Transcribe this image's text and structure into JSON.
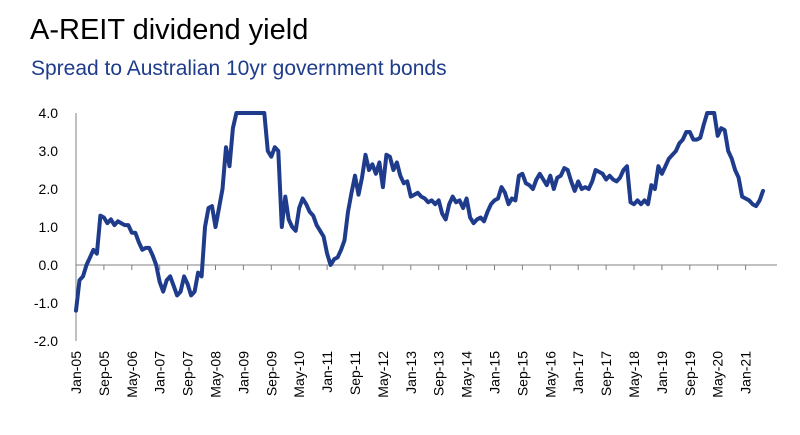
{
  "chart_data": {
    "type": "line",
    "title": "A-REIT dividend yield",
    "subtitle": "Spread to Australian 10yr government bonds",
    "xlabel": "",
    "ylabel": "",
    "ylim": [
      -2.0,
      4.0
    ],
    "yticks": [
      "4.0",
      "3.0",
      "2.0",
      "1.0",
      "0.0",
      "-1.0",
      "-2.0"
    ],
    "grid": false,
    "x_start": "Jan-05",
    "x_end": "Oct-21",
    "xticks": [
      "Jan-05",
      "Sep-05",
      "May-06",
      "Jan-07",
      "Sep-07",
      "May-08",
      "Jan-09",
      "Sep-09",
      "May-10",
      "Jan-11",
      "Sep-11",
      "May-12",
      "Jan-13",
      "Sep-13",
      "May-14",
      "Jan-15",
      "Sep-15",
      "May-16",
      "Jan-17",
      "Sep-17",
      "May-18",
      "Jan-19",
      "Sep-19",
      "May-20",
      "Jan-21"
    ],
    "series": [
      {
        "color": "#1f3c8c",
        "points": [
          [
            "Jan-05",
            -1.2
          ],
          [
            "Feb-05",
            -0.4
          ],
          [
            "Mar-05",
            -0.3
          ],
          [
            "Apr-05",
            0.0
          ],
          [
            "May-05",
            0.2
          ],
          [
            "Jun-05",
            0.4
          ],
          [
            "Jul-05",
            0.3
          ],
          [
            "Aug-05",
            1.3
          ],
          [
            "Sep-05",
            1.25
          ],
          [
            "Oct-05",
            1.1
          ],
          [
            "Nov-05",
            1.2
          ],
          [
            "Dec-05",
            1.05
          ],
          [
            "Jan-06",
            1.15
          ],
          [
            "Feb-06",
            1.1
          ],
          [
            "Mar-06",
            1.05
          ],
          [
            "Apr-06",
            1.05
          ],
          [
            "May-06",
            0.85
          ],
          [
            "Jun-06",
            0.85
          ],
          [
            "Jul-06",
            0.6
          ],
          [
            "Aug-06",
            0.4
          ],
          [
            "Sep-06",
            0.45
          ],
          [
            "Oct-06",
            0.45
          ],
          [
            "Nov-06",
            0.25
          ],
          [
            "Dec-06",
            0.0
          ],
          [
            "Jan-07",
            -0.45
          ],
          [
            "Feb-07",
            -0.7
          ],
          [
            "Mar-07",
            -0.4
          ],
          [
            "Apr-07",
            -0.3
          ],
          [
            "May-07",
            -0.55
          ],
          [
            "Jun-07",
            -0.8
          ],
          [
            "Jul-07",
            -0.7
          ],
          [
            "Aug-07",
            -0.3
          ],
          [
            "Sep-07",
            -0.5
          ],
          [
            "Oct-07",
            -0.8
          ],
          [
            "Nov-07",
            -0.7
          ],
          [
            "Dec-07",
            -0.2
          ],
          [
            "Jan-08",
            -0.3
          ],
          [
            "Feb-08",
            1.0
          ],
          [
            "Mar-08",
            1.5
          ],
          [
            "Apr-08",
            1.55
          ],
          [
            "May-08",
            1.0
          ],
          [
            "Jun-08",
            1.5
          ],
          [
            "Jul-08",
            2.0
          ],
          [
            "Aug-08",
            3.1
          ],
          [
            "Sep-08",
            2.6
          ],
          [
            "Oct-08",
            3.6
          ],
          [
            "Nov-08",
            4.0
          ],
          [
            "Jul-09",
            4.0
          ],
          [
            "Aug-09",
            3.0
          ],
          [
            "Sep-09",
            2.85
          ],
          [
            "Oct-09",
            3.1
          ],
          [
            "Nov-09",
            3.0
          ],
          [
            "Dec-09",
            1.0
          ],
          [
            "Jan-10",
            1.8
          ],
          [
            "Feb-10",
            1.2
          ],
          [
            "Mar-10",
            1.0
          ],
          [
            "Apr-10",
            0.9
          ],
          [
            "May-10",
            1.5
          ],
          [
            "Jun-10",
            1.75
          ],
          [
            "Jul-10",
            1.6
          ],
          [
            "Aug-10",
            1.4
          ],
          [
            "Sep-10",
            1.3
          ],
          [
            "Oct-10",
            1.05
          ],
          [
            "Nov-10",
            0.9
          ],
          [
            "Dec-10",
            0.75
          ],
          [
            "Jan-11",
            0.3
          ],
          [
            "Feb-11",
            0.0
          ],
          [
            "Mar-11",
            0.15
          ],
          [
            "Apr-11",
            0.2
          ],
          [
            "May-11",
            0.4
          ],
          [
            "Jun-11",
            0.65
          ],
          [
            "Jul-11",
            1.4
          ],
          [
            "Aug-11",
            1.9
          ],
          [
            "Sep-11",
            2.35
          ],
          [
            "Oct-11",
            1.85
          ],
          [
            "Nov-11",
            2.3
          ],
          [
            "Dec-11",
            2.9
          ],
          [
            "Jan-12",
            2.5
          ],
          [
            "Feb-12",
            2.65
          ],
          [
            "Mar-12",
            2.4
          ],
          [
            "Apr-12",
            2.7
          ],
          [
            "May-12",
            2.05
          ],
          [
            "Jun-12",
            2.9
          ],
          [
            "Jul-12",
            2.85
          ],
          [
            "Aug-12",
            2.5
          ],
          [
            "Sep-12",
            2.7
          ],
          [
            "Oct-12",
            2.35
          ],
          [
            "Nov-12",
            2.15
          ],
          [
            "Dec-12",
            2.2
          ],
          [
            "Jan-13",
            1.8
          ],
          [
            "Feb-13",
            1.85
          ],
          [
            "Mar-13",
            1.9
          ],
          [
            "Apr-13",
            1.8
          ],
          [
            "May-13",
            1.75
          ],
          [
            "Jun-13",
            1.65
          ],
          [
            "Jul-13",
            1.7
          ],
          [
            "Aug-13",
            1.6
          ],
          [
            "Sep-13",
            1.7
          ],
          [
            "Oct-13",
            1.35
          ],
          [
            "Nov-13",
            1.2
          ],
          [
            "Dec-13",
            1.6
          ],
          [
            "Jan-14",
            1.8
          ],
          [
            "Feb-14",
            1.65
          ],
          [
            "Mar-14",
            1.7
          ],
          [
            "Apr-14",
            1.5
          ],
          [
            "May-14",
            1.75
          ],
          [
            "Jun-14",
            1.25
          ],
          [
            "Jul-14",
            1.1
          ],
          [
            "Aug-14",
            1.2
          ],
          [
            "Sep-14",
            1.25
          ],
          [
            "Oct-14",
            1.15
          ],
          [
            "Nov-14",
            1.4
          ],
          [
            "Dec-14",
            1.6
          ],
          [
            "Jan-15",
            1.7
          ],
          [
            "Feb-15",
            1.75
          ],
          [
            "Mar-15",
            2.05
          ],
          [
            "Apr-15",
            1.9
          ],
          [
            "May-15",
            1.6
          ],
          [
            "Jun-15",
            1.75
          ],
          [
            "Jul-15",
            1.7
          ],
          [
            "Aug-15",
            2.35
          ],
          [
            "Sep-15",
            2.4
          ],
          [
            "Oct-15",
            2.15
          ],
          [
            "Nov-15",
            2.1
          ],
          [
            "Dec-15",
            2.0
          ],
          [
            "Jan-16",
            2.25
          ],
          [
            "Feb-16",
            2.4
          ],
          [
            "Mar-16",
            2.25
          ],
          [
            "Apr-16",
            2.1
          ],
          [
            "May-16",
            2.35
          ],
          [
            "Jun-16",
            2.0
          ],
          [
            "Jul-16",
            2.3
          ],
          [
            "Aug-16",
            2.35
          ],
          [
            "Sep-16",
            2.55
          ],
          [
            "Oct-16",
            2.5
          ],
          [
            "Nov-16",
            2.2
          ],
          [
            "Dec-16",
            1.95
          ],
          [
            "Jan-17",
            2.2
          ],
          [
            "Feb-17",
            2.0
          ],
          [
            "Mar-17",
            2.05
          ],
          [
            "Apr-17",
            2.0
          ],
          [
            "May-17",
            2.2
          ],
          [
            "Jun-17",
            2.5
          ],
          [
            "Jul-17",
            2.45
          ],
          [
            "Aug-17",
            2.4
          ],
          [
            "Sep-17",
            2.25
          ],
          [
            "Oct-17",
            2.35
          ],
          [
            "Nov-17",
            2.25
          ],
          [
            "Dec-17",
            2.2
          ],
          [
            "Jan-18",
            2.3
          ],
          [
            "Feb-18",
            2.5
          ],
          [
            "Mar-18",
            2.6
          ],
          [
            "Apr-18",
            1.65
          ],
          [
            "May-18",
            1.6
          ],
          [
            "Jun-18",
            1.7
          ],
          [
            "Jul-18",
            1.6
          ],
          [
            "Aug-18",
            1.7
          ],
          [
            "Sep-18",
            1.6
          ],
          [
            "Oct-18",
            2.1
          ],
          [
            "Nov-18",
            2.0
          ],
          [
            "Dec-18",
            2.6
          ],
          [
            "Jan-19",
            2.4
          ],
          [
            "Feb-19",
            2.6
          ],
          [
            "Mar-19",
            2.8
          ],
          [
            "Apr-19",
            2.9
          ],
          [
            "May-19",
            3.0
          ],
          [
            "Jun-19",
            3.2
          ],
          [
            "Jul-19",
            3.3
          ],
          [
            "Aug-19",
            3.5
          ],
          [
            "Sep-19",
            3.5
          ],
          [
            "Oct-19",
            3.3
          ],
          [
            "Nov-19",
            3.3
          ],
          [
            "Dec-19",
            3.35
          ],
          [
            "Jan-20",
            3.7
          ],
          [
            "Feb-20",
            4.0
          ],
          [
            "Apr-20",
            4.0
          ],
          [
            "May-20",
            3.4
          ],
          [
            "Jun-20",
            3.6
          ],
          [
            "Jul-20",
            3.55
          ],
          [
            "Aug-20",
            3.0
          ],
          [
            "Sep-20",
            2.8
          ],
          [
            "Oct-20",
            2.5
          ],
          [
            "Nov-20",
            2.3
          ],
          [
            "Dec-20",
            1.8
          ],
          [
            "Jan-21",
            1.75
          ],
          [
            "Feb-21",
            1.7
          ],
          [
            "Mar-21",
            1.6
          ],
          [
            "Apr-21",
            1.55
          ],
          [
            "May-21",
            1.7
          ],
          [
            "Jun-21",
            1.95
          ]
        ]
      }
    ]
  }
}
